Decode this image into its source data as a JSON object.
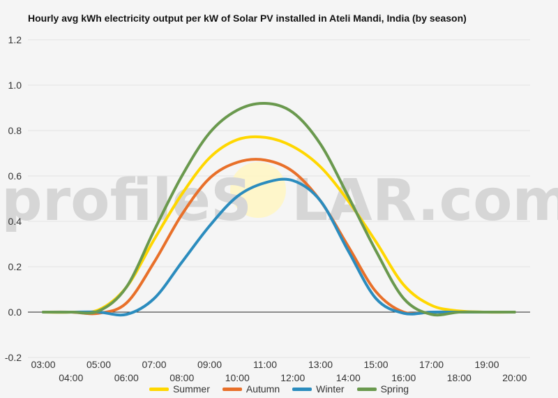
{
  "chart_data": {
    "type": "line",
    "title": "Hourly avg kWh electricity output per kW of Solar PV installed in Ateli Mandi, India (by season)",
    "watermark": {
      "left": "profileS",
      "sun": "O",
      "right": "LAR.com"
    },
    "xlabel": "",
    "ylabel": "",
    "ylim": [
      -0.2,
      1.2
    ],
    "yticks": [
      "-0.2",
      "0.0",
      "0.2",
      "0.4",
      "0.6",
      "0.8",
      "1.0",
      "1.2"
    ],
    "x": [
      "03:00",
      "04:00",
      "05:00",
      "06:00",
      "07:00",
      "08:00",
      "09:00",
      "10:00",
      "11:00",
      "12:00",
      "13:00",
      "14:00",
      "15:00",
      "16:00",
      "17:00",
      "18:00",
      "19:00",
      "20:00"
    ],
    "grid": true,
    "legend": "bottom",
    "series": [
      {
        "name": "Summer",
        "color": "#ffd700",
        "values": [
          0.0,
          0.0,
          0.01,
          0.11,
          0.32,
          0.52,
          0.68,
          0.76,
          0.77,
          0.73,
          0.64,
          0.49,
          0.31,
          0.12,
          0.03,
          0.005,
          0.0,
          0.0
        ]
      },
      {
        "name": "Autumn",
        "color": "#e8702a",
        "values": [
          0.0,
          0.0,
          -0.005,
          0.04,
          0.22,
          0.43,
          0.59,
          0.66,
          0.67,
          0.62,
          0.49,
          0.29,
          0.09,
          0.0,
          0.0,
          0.0,
          0.0,
          0.0
        ]
      },
      {
        "name": "Winter",
        "color": "#2b8cbe",
        "values": [
          0.0,
          0.0,
          0.0,
          -0.01,
          0.06,
          0.22,
          0.38,
          0.51,
          0.57,
          0.58,
          0.49,
          0.27,
          0.06,
          -0.005,
          0.0,
          0.0,
          0.0,
          0.0
        ]
      },
      {
        "name": "Spring",
        "color": "#6a994e",
        "values": [
          0.0,
          0.0,
          0.005,
          0.11,
          0.36,
          0.6,
          0.79,
          0.89,
          0.92,
          0.88,
          0.74,
          0.51,
          0.27,
          0.06,
          -0.01,
          0.0,
          0.0,
          0.0
        ]
      }
    ]
  }
}
